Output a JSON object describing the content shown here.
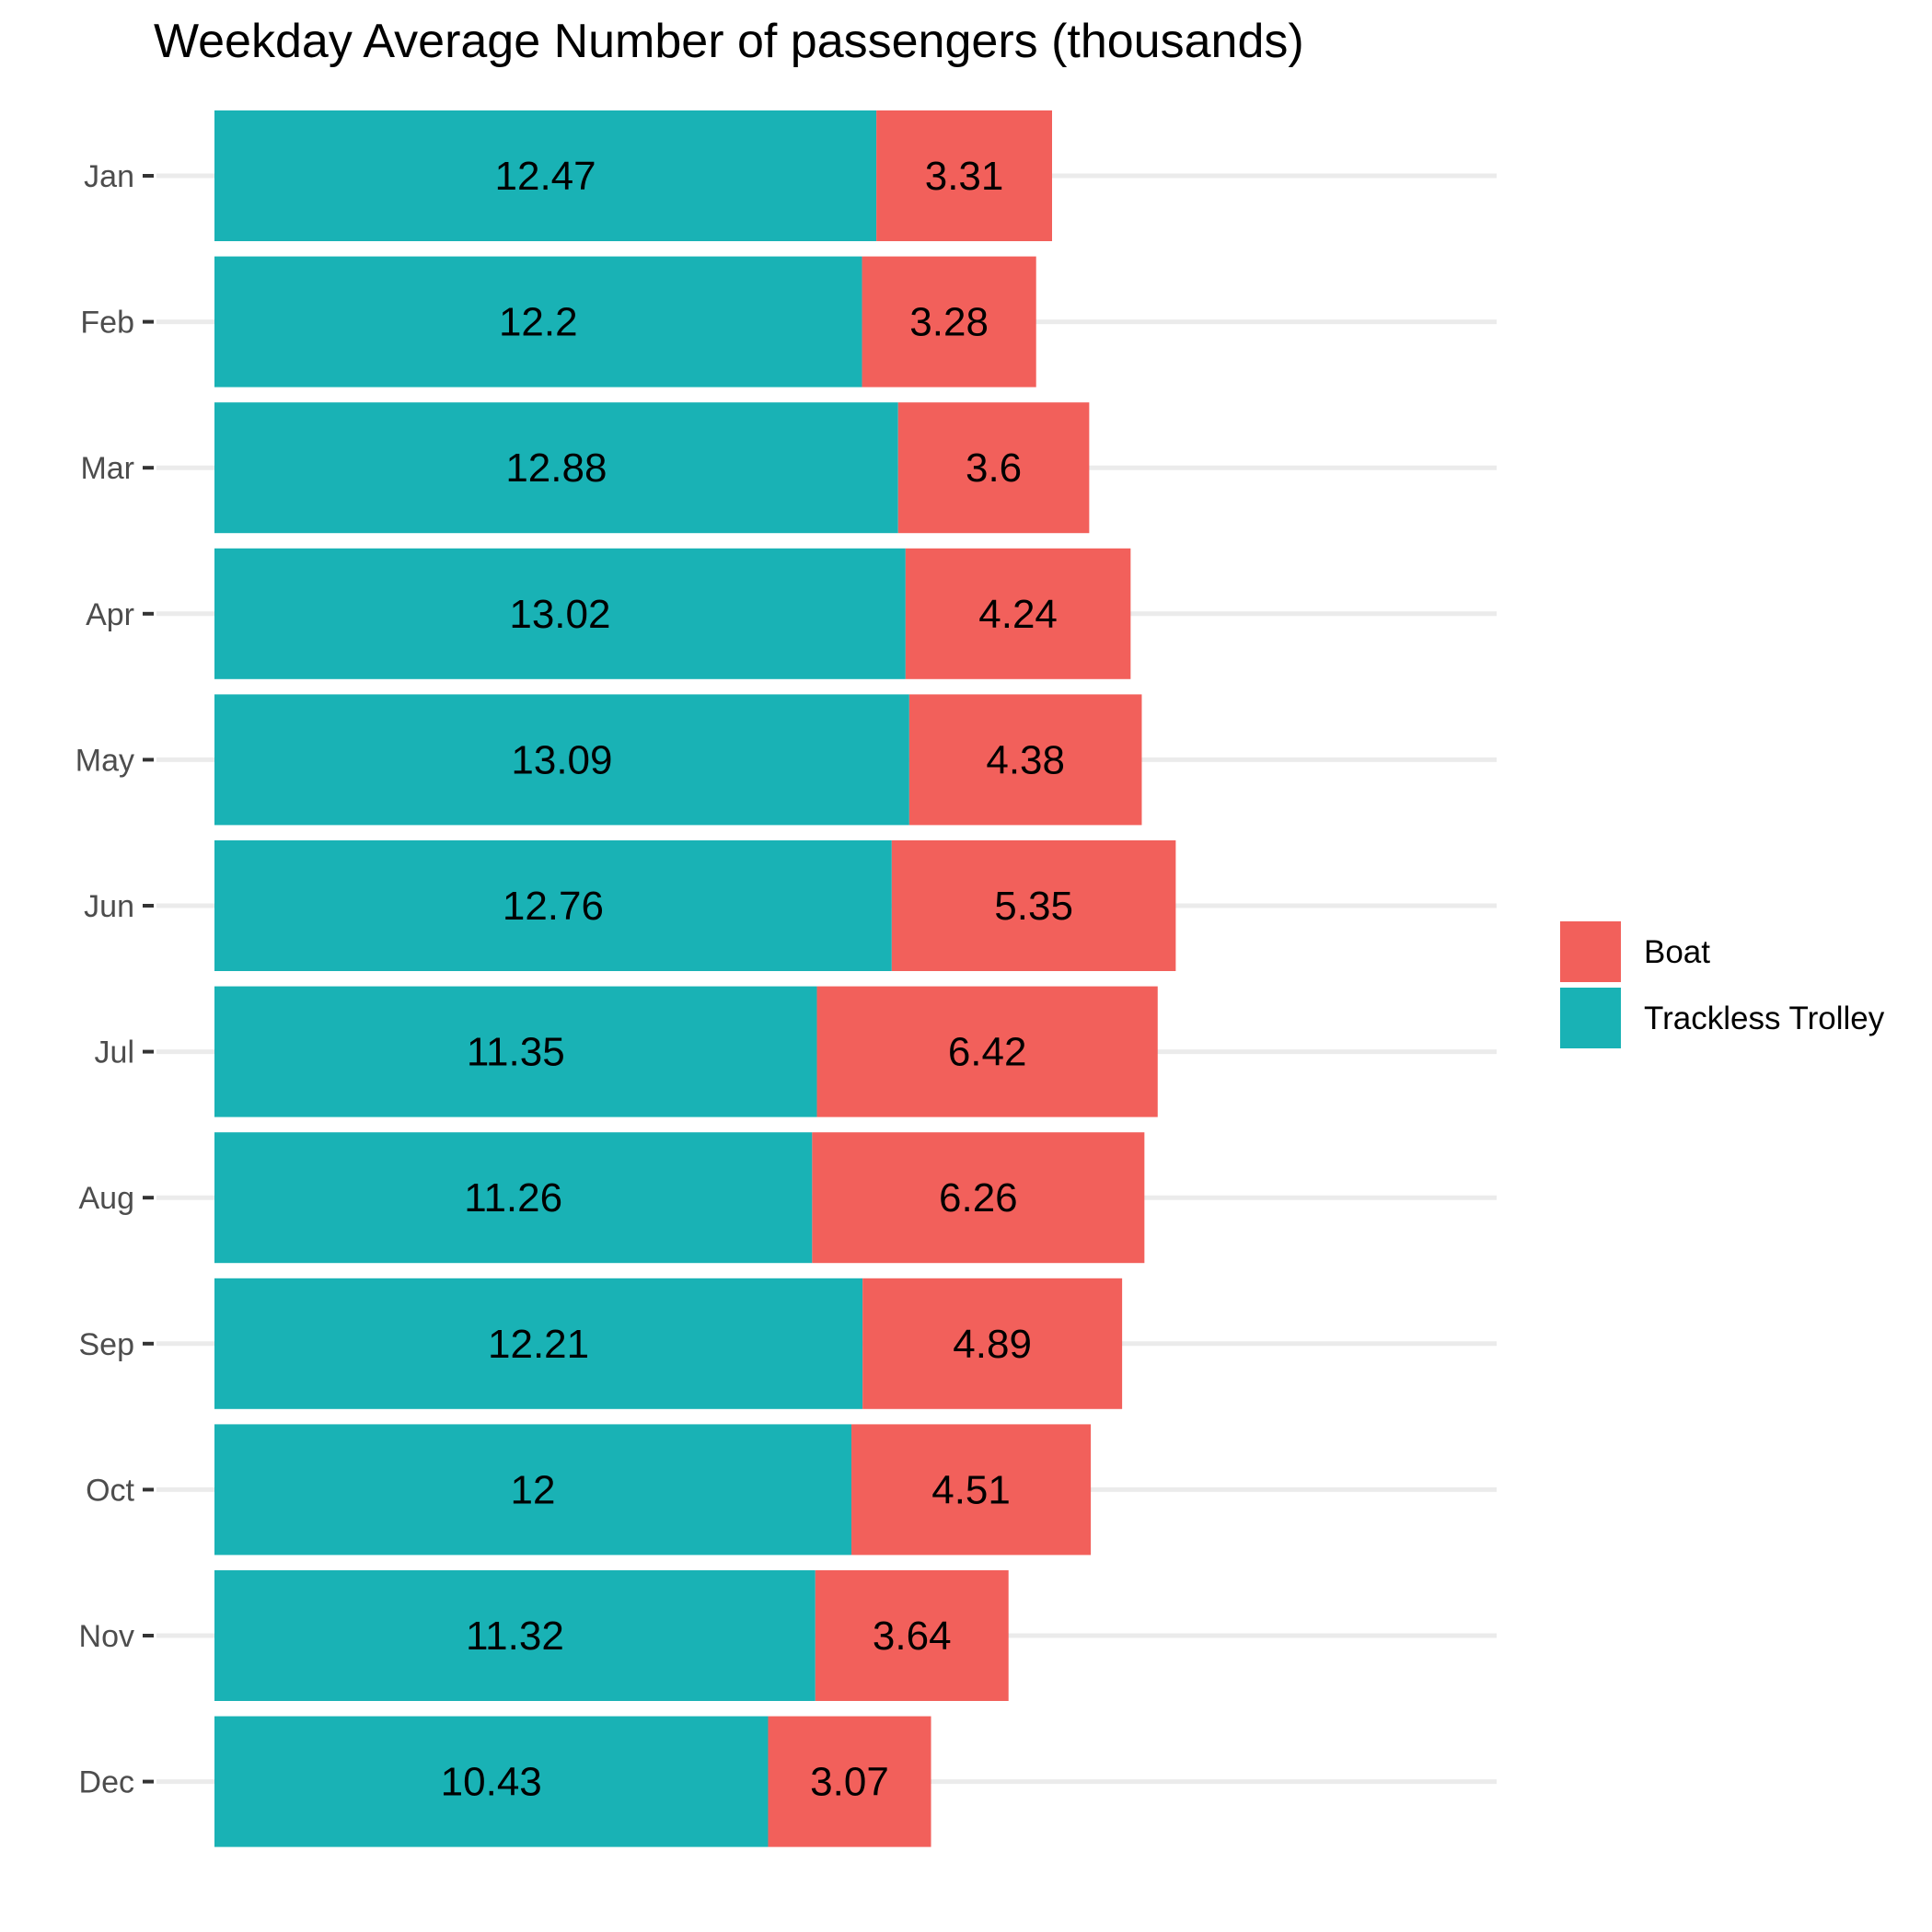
{
  "chart_data": {
    "type": "bar",
    "orientation": "horizontal",
    "stacked": true,
    "title": "Weekday Average Number of passengers (thousands)",
    "xlabel": "",
    "ylabel": "",
    "categories": [
      "Jan",
      "Feb",
      "Mar",
      "Apr",
      "May",
      "Jun",
      "Jul",
      "Aug",
      "Sep",
      "Oct",
      "Nov",
      "Dec"
    ],
    "series": [
      {
        "name": "Trackless Trolley",
        "color": "#19b2b5",
        "values": [
          12.47,
          12.2,
          12.88,
          13.02,
          13.09,
          12.76,
          11.35,
          11.26,
          12.21,
          12,
          11.32,
          10.43
        ],
        "labels": [
          "12.47",
          "12.2",
          "12.88",
          "13.02",
          "13.09",
          "12.76",
          "11.35",
          "11.26",
          "12.21",
          "12",
          "11.32",
          "10.43"
        ]
      },
      {
        "name": "Boat",
        "color": "#f2605b",
        "values": [
          3.31,
          3.28,
          3.6,
          4.24,
          4.38,
          5.35,
          6.42,
          6.26,
          4.89,
          4.51,
          3.64,
          3.07
        ],
        "labels": [
          "3.31",
          "3.28",
          "3.6",
          "4.24",
          "4.38",
          "5.35",
          "6.42",
          "6.26",
          "4.89",
          "4.51",
          "3.64",
          "3.07"
        ]
      }
    ],
    "xlim": [
      0,
      19
    ],
    "grid": true,
    "x_axis_visible": false,
    "legend": {
      "position": "right",
      "entries": [
        "Boat",
        "Trackless Trolley"
      ]
    }
  }
}
